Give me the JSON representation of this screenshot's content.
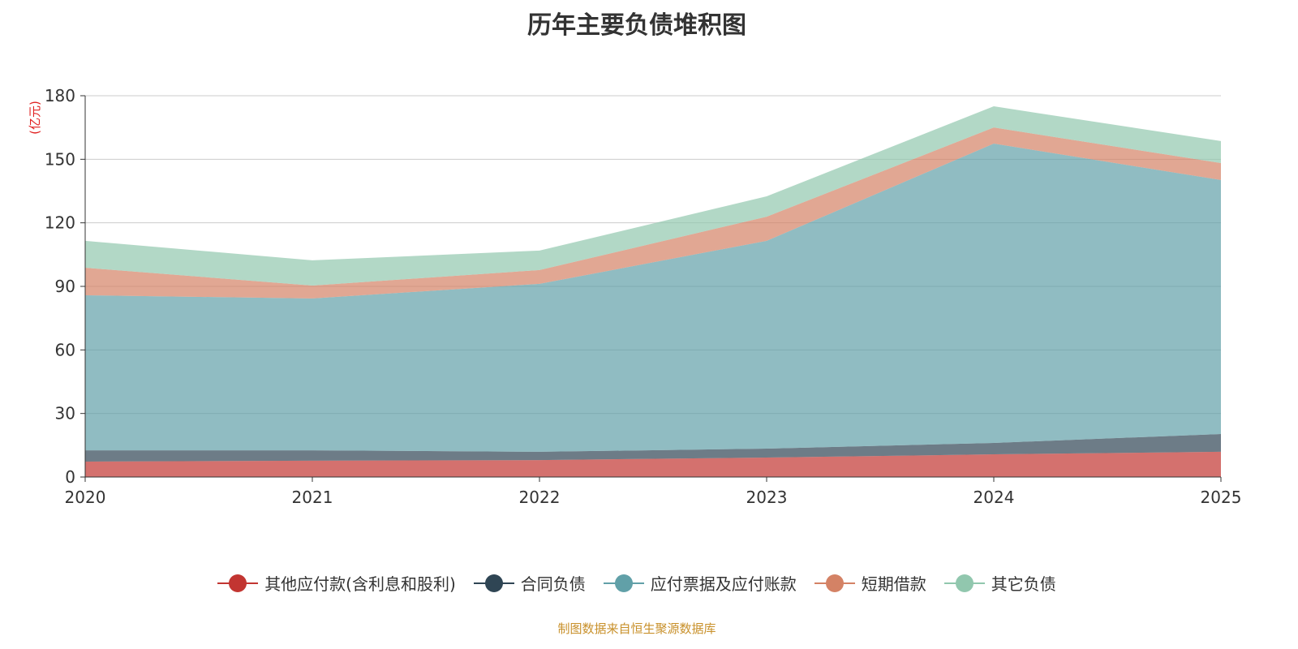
{
  "chart_data": {
    "type": "area",
    "stacked": true,
    "title": "历年主要负债堆积图",
    "ylabel": "(亿元)",
    "xlabel": "",
    "x": [
      "2020",
      "2021",
      "2022",
      "2023",
      "2024",
      "2025"
    ],
    "ylim": [
      0,
      180
    ],
    "yticks": [
      "0",
      "30",
      "60",
      "90",
      "120",
      "150",
      "180"
    ],
    "grid": true,
    "legend_position": "bottom",
    "series": [
      {
        "name": "其他应付款(含利息和股利)",
        "color": "#c23531",
        "values": [
          7.3,
          7.7,
          8.0,
          9.2,
          10.7,
          11.9
        ]
      },
      {
        "name": "合同负债",
        "color": "#2f4554",
        "values": [
          5.3,
          4.9,
          3.9,
          4.2,
          5.4,
          8.4
        ]
      },
      {
        "name": "应付票据及应付账款",
        "color": "#61a0a8",
        "values": [
          73.2,
          71.7,
          79.3,
          98.1,
          141.3,
          119.9
        ]
      },
      {
        "name": "短期借款",
        "color": "#d48265",
        "values": [
          13.0,
          6.1,
          6.5,
          11.4,
          7.6,
          8.0
        ]
      },
      {
        "name": "其它负债",
        "color": "#91c7ae",
        "values": [
          12.7,
          11.9,
          9.2,
          9.6,
          10.0,
          10.4
        ]
      }
    ]
  },
  "source": "制图数据来自恒生聚源数据库"
}
